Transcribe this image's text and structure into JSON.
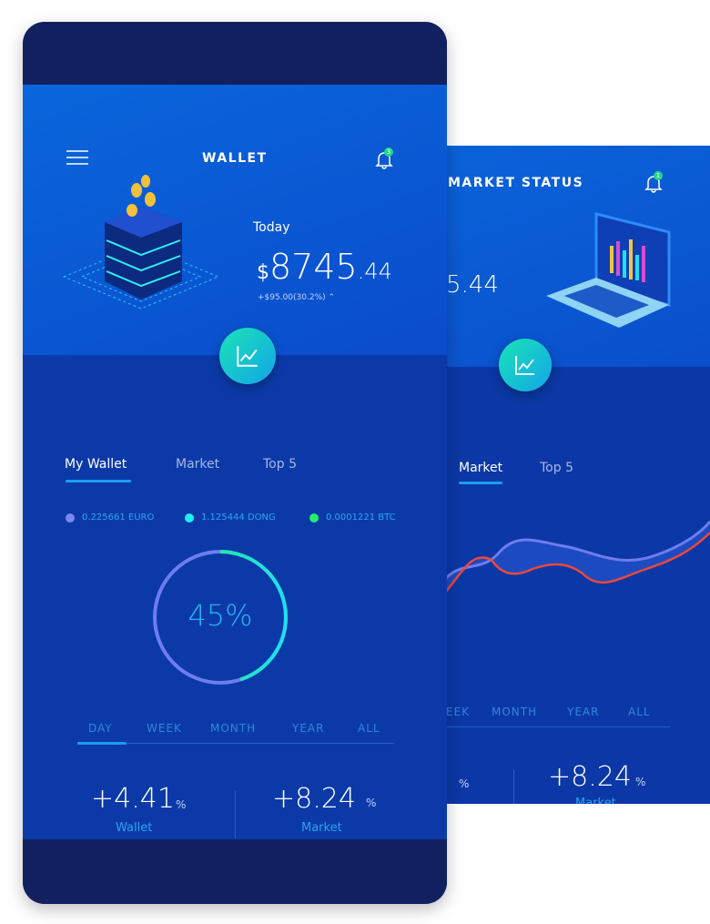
{
  "market_screen": {
    "title": "MARKET STATUS",
    "notification_count": "1",
    "amount_partial": "5.44",
    "tabs": [
      {
        "label": "Market"
      },
      {
        "label": "Top 5"
      }
    ],
    "periods": [
      "EEK",
      "MONTH",
      "YEAR",
      "ALL"
    ],
    "stats": [
      {
        "value": "",
        "unit": "%"
      },
      {
        "value": "+8.24",
        "unit": "%",
        "label": "Market"
      }
    ]
  },
  "wallet_screen": {
    "title": "WALLET",
    "notification_count": "3",
    "today_label": "Today",
    "currency": "$",
    "amount_int": "8745",
    "amount_dec": ".44",
    "change": "+$95.00(30.2%)",
    "tabs": [
      {
        "label": "My Wallet"
      },
      {
        "label": "Market"
      },
      {
        "label": "Top 5"
      }
    ],
    "legend": [
      {
        "label": "0.225661 EURO",
        "color": "#7b86f2"
      },
      {
        "label": "1.125444 DONG",
        "color": "#1ef0f0"
      },
      {
        "label": "0.0001221 BTC",
        "color": "#22f06a"
      }
    ],
    "progress_percent": 45,
    "progress_label": "45%",
    "periods": [
      "DAY",
      "WEEK",
      "MONTH",
      "YEAR",
      "ALL"
    ],
    "active_period": "DAY",
    "stats": [
      {
        "value": "+4.41",
        "unit": "%",
        "label": "Wallet"
      },
      {
        "value": "+8.24",
        "unit": "%",
        "label": "Market"
      }
    ]
  }
}
